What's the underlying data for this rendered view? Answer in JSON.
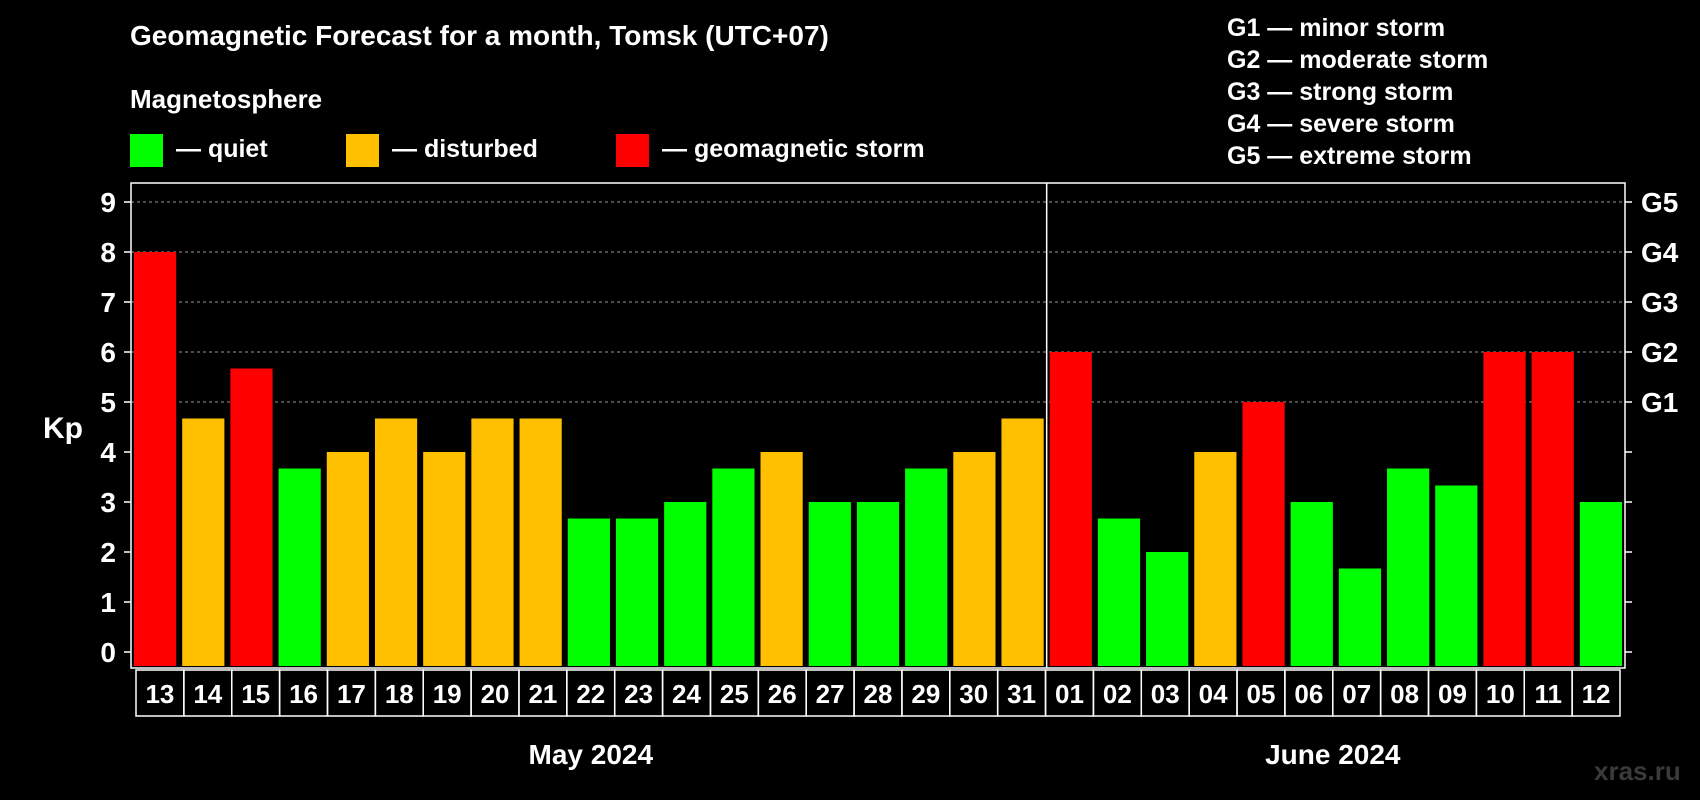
{
  "title": "Geomagnetic Forecast for a month, Tomsk (UTC+07)",
  "subtitle": "Magnetosphere",
  "legend": [
    {
      "label": "— quiet",
      "color": "#00ff00"
    },
    {
      "label": "— disturbed",
      "color": "#ffc000"
    },
    {
      "label": "— geomagnetic storm",
      "color": "#ff0000"
    }
  ],
  "g_levels": [
    "G1 — minor storm",
    "G2 — moderate storm",
    "G3 — strong storm",
    "G4 — severe storm",
    "G5 — extreme storm"
  ],
  "watermark": "xras.ru",
  "chart_data": {
    "type": "bar",
    "ylabel": "Kp",
    "ylim": [
      0,
      9
    ],
    "yticks": [
      0,
      1,
      2,
      3,
      4,
      5,
      6,
      7,
      8,
      9
    ],
    "right_axis_labels": [
      {
        "value": 5,
        "label": "G1"
      },
      {
        "value": 6,
        "label": "G2"
      },
      {
        "value": 7,
        "label": "G3"
      },
      {
        "value": 8,
        "label": "G4"
      },
      {
        "value": 9,
        "label": "G5"
      }
    ],
    "grid": "horizontal dashed",
    "months": [
      {
        "label": "May 2024",
        "first_index": 0,
        "last_index": 18
      },
      {
        "label": "June 2024",
        "first_index": 19,
        "last_index": 30
      }
    ],
    "categories": [
      "13",
      "14",
      "15",
      "16",
      "17",
      "18",
      "19",
      "20",
      "21",
      "22",
      "23",
      "24",
      "25",
      "26",
      "27",
      "28",
      "29",
      "30",
      "31",
      "01",
      "02",
      "03",
      "04",
      "05",
      "06",
      "07",
      "08",
      "09",
      "10",
      "11",
      "12"
    ],
    "values": [
      8,
      4.67,
      5.67,
      3.67,
      4,
      4.67,
      4,
      4.67,
      4.67,
      2.67,
      2.67,
      3,
      3.67,
      4,
      3,
      3,
      3.67,
      4,
      4.67,
      6,
      2.67,
      2,
      4,
      5,
      3,
      1.67,
      3.67,
      3.33,
      6,
      6,
      3
    ],
    "status": [
      "storm",
      "disturbed",
      "storm",
      "quiet",
      "disturbed",
      "disturbed",
      "disturbed",
      "disturbed",
      "disturbed",
      "quiet",
      "quiet",
      "quiet",
      "quiet",
      "disturbed",
      "quiet",
      "quiet",
      "quiet",
      "disturbed",
      "disturbed",
      "storm",
      "quiet",
      "quiet",
      "disturbed",
      "storm",
      "quiet",
      "quiet",
      "quiet",
      "quiet",
      "storm",
      "storm",
      "quiet"
    ],
    "status_colors": {
      "quiet": "#00ff00",
      "disturbed": "#ffc000",
      "storm": "#ff0000"
    }
  }
}
